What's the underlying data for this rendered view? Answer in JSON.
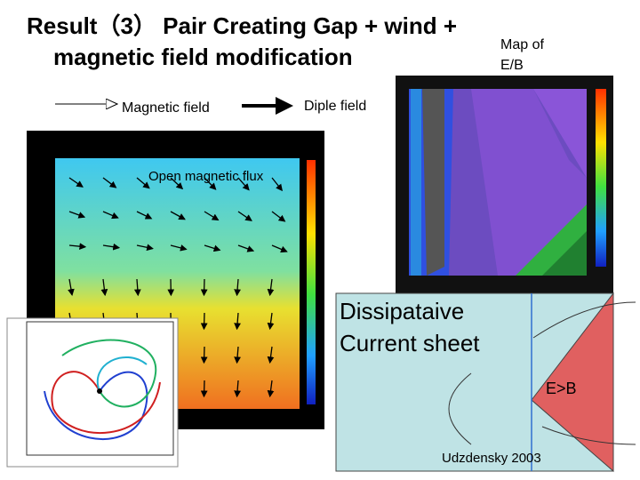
{
  "header": {
    "title_line1": "Result（3） Pair Creating Gap + wind +",
    "title_line2": "magnetic field modification",
    "map_label_line1": "Map of",
    "map_label_line2": "E/B"
  },
  "legend": {
    "thin_arrow": "Magnetic field",
    "thick_arrow": "Diple field"
  },
  "annotations": {
    "open_flux": "Open magnetic flux",
    "sheet_line1": "Dissipataive",
    "sheet_line2": "Current sheet",
    "e_gt_b": "E>B",
    "reference": "Udzdensky 2003"
  }
}
